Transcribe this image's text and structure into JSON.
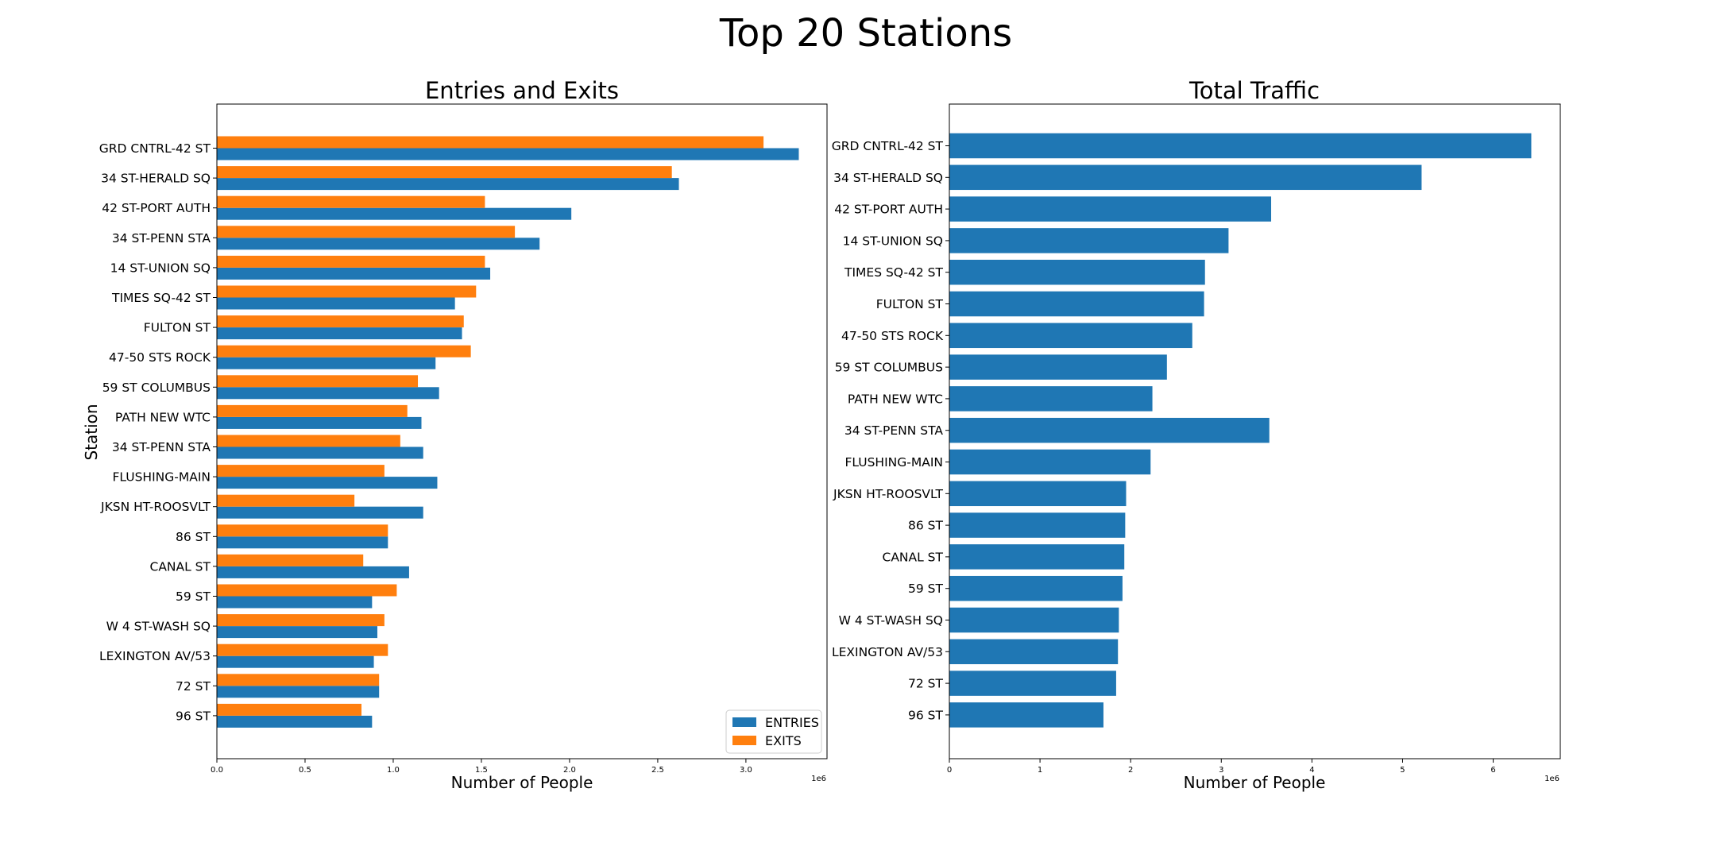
{
  "figure_title": "Top 20 Stations",
  "colors": {
    "entries": "#1f77b4",
    "exits": "#ff7f0e",
    "total": "#1f77b4"
  },
  "chart_data": [
    {
      "type": "bar",
      "orientation": "horizontal",
      "title": "Entries and Exits",
      "xlabel": "Number of People",
      "ylabel": "Station",
      "x_offset_label": "1e6",
      "xlim": [
        0,
        3.46
      ],
      "xticks": [
        "0.0",
        "0.5",
        "1.0",
        "1.5",
        "2.0",
        "2.5",
        "3.0"
      ],
      "legend": {
        "position": "lower-right"
      },
      "categories": [
        "GRD CNTRL-42 ST",
        "34 ST-HERALD SQ",
        "42 ST-PORT AUTH",
        "34 ST-PENN STA",
        "14 ST-UNION SQ",
        "TIMES SQ-42 ST",
        "FULTON ST",
        "47-50 STS ROCK",
        "59 ST COLUMBUS",
        "PATH NEW WTC",
        "34 ST-PENN STA",
        "FLUSHING-MAIN",
        "JKSN HT-ROOSVLT",
        "86 ST",
        "CANAL ST",
        "59 ST",
        "W 4 ST-WASH SQ",
        "LEXINGTON AV/53",
        "72 ST",
        "96 ST"
      ],
      "series": [
        {
          "name": "ENTRIES",
          "values": [
            3.3,
            2.62,
            2.01,
            1.83,
            1.55,
            1.35,
            1.39,
            1.24,
            1.26,
            1.16,
            1.17,
            1.25,
            1.17,
            0.97,
            1.09,
            0.88,
            0.91,
            0.89,
            0.92,
            0.88
          ]
        },
        {
          "name": "EXITS",
          "values": [
            3.1,
            2.58,
            1.52,
            1.69,
            1.52,
            1.47,
            1.4,
            1.44,
            1.14,
            1.08,
            1.04,
            0.95,
            0.78,
            0.97,
            0.83,
            1.02,
            0.95,
            0.97,
            0.92,
            0.82
          ]
        }
      ]
    },
    {
      "type": "bar",
      "orientation": "horizontal",
      "title": "Total Traffic",
      "xlabel": "Number of People",
      "x_offset_label": "1e6",
      "xlim": [
        0,
        6.74
      ],
      "xticks": [
        "0",
        "1",
        "2",
        "3",
        "4",
        "5",
        "6"
      ],
      "categories": [
        "GRD CNTRL-42 ST",
        "34 ST-HERALD SQ",
        "42 ST-PORT AUTH",
        "14 ST-UNION SQ",
        "TIMES SQ-42 ST",
        "FULTON ST",
        "47-50 STS ROCK",
        "59 ST COLUMBUS",
        "PATH NEW WTC",
        "34 ST-PENN STA",
        "FLUSHING-MAIN",
        "JKSN HT-ROOSVLT",
        "86 ST",
        "CANAL ST",
        "59 ST",
        "W 4 ST-WASH SQ",
        "LEXINGTON AV/53",
        "72 ST",
        "96 ST"
      ],
      "values": [
        6.42,
        5.21,
        3.55,
        3.08,
        2.82,
        2.81,
        2.68,
        2.4,
        2.24,
        3.53,
        2.22,
        1.95,
        1.94,
        1.93,
        1.91,
        1.87,
        1.86,
        1.84,
        1.7
      ]
    }
  ]
}
